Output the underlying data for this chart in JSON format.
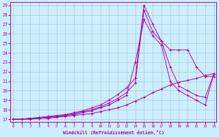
{
  "xlabel": "Windchill (Refroidissement éolien,°C)",
  "background_color": "#cceeff",
  "line_color": "#aa00aa",
  "grid_color": "#aacccc",
  "xmin": 0,
  "xmax": 23,
  "ymin": 17,
  "ymax": 29,
  "lines": [
    [
      17.0,
      17.0,
      17.1,
      17.2,
      17.3,
      17.4,
      17.5,
      17.7,
      17.9,
      18.2,
      18.5,
      19.0,
      19.6,
      20.3,
      21.3,
      29.0,
      27.0,
      25.2,
      24.3,
      24.3,
      24.3,
      22.5,
      21.5,
      21.5
    ],
    [
      17.0,
      17.0,
      17.1,
      17.1,
      17.2,
      17.3,
      17.4,
      17.6,
      17.8,
      18.0,
      18.3,
      18.7,
      19.2,
      19.8,
      20.8,
      28.5,
      26.2,
      25.2,
      22.5,
      20.5,
      20.0,
      19.5,
      19.3,
      21.8
    ],
    [
      17.0,
      17.0,
      17.1,
      17.1,
      17.2,
      17.3,
      17.4,
      17.5,
      17.7,
      17.9,
      18.2,
      18.5,
      19.0,
      19.5,
      23.0,
      27.5,
      25.8,
      24.8,
      21.0,
      20.0,
      19.5,
      19.0,
      18.5,
      21.8
    ],
    [
      17.0,
      17.0,
      17.0,
      17.1,
      17.1,
      17.2,
      17.3,
      17.4,
      17.5,
      17.6,
      17.8,
      18.0,
      18.2,
      18.5,
      18.9,
      19.3,
      19.8,
      20.2,
      20.6,
      20.9,
      21.1,
      21.3,
      21.6,
      21.8
    ]
  ]
}
